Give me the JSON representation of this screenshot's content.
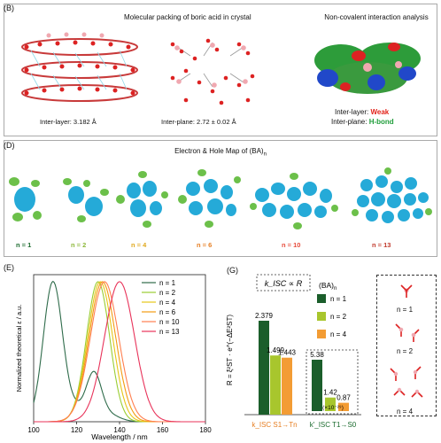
{
  "panel_b": {
    "label": "(B)",
    "title1": "Molecular packing of boric acid in crystal",
    "title2": "Non-covalent interaction analysis",
    "inter_layer": "Inter-layer: 3.182 Å",
    "inter_plane": "Inter-plane: 2.72 ± 0.02 Å",
    "nci_layer_prefix": "Inter-layer: ",
    "nci_layer_value": "Weak",
    "nci_plane_prefix": "Inter-plane: ",
    "nci_plane_value": "H-bond",
    "colors": {
      "weak": "#e2231a",
      "hbond": "#1f9d3a"
    }
  },
  "panel_d": {
    "label": "(D)",
    "title": "Electron & Hole Map of (BA)",
    "title_sub": "n",
    "n_labels": [
      {
        "text": "n = 1",
        "color": "#1b6b2e"
      },
      {
        "text": "n = 2",
        "color": "#8db83a"
      },
      {
        "text": "n = 4",
        "color": "#e0a81c"
      },
      {
        "text": "n = 6",
        "color": "#e67e22"
      },
      {
        "text": "n = 10",
        "color": "#e74c3c"
      },
      {
        "text": "n = 13",
        "color": "#c0392b"
      }
    ]
  },
  "chart_data": [
    {
      "type": "line",
      "panel": "(E)",
      "xlabel": "Wavelength / nm",
      "ylabel": "Normalized theoretical ε / a.u.",
      "xlim": [
        100,
        180
      ],
      "ylim": [
        0,
        1.05
      ],
      "xticks": [
        "100",
        "120",
        "140",
        "160",
        "180"
      ],
      "series": [
        {
          "name": "n = 1",
          "color": "#2e6b4a",
          "peak": 109,
          "peak2": 128
        },
        {
          "name": "n = 2",
          "color": "#9acd32",
          "peak": 130
        },
        {
          "name": "n = 4",
          "color": "#e6c619",
          "peak": 131
        },
        {
          "name": "n = 6",
          "color": "#f39c12",
          "peak": 132
        },
        {
          "name": "n = 10",
          "color": "#ff7f50",
          "peak": 133
        },
        {
          "name": "n = 13",
          "color": "#e8335a",
          "peak": 140
        }
      ]
    },
    {
      "type": "bar",
      "panel": "(G)",
      "annotation": "k_ISC ∝ R",
      "ylabel": "R = ξ²ST · e^(−ΔE²ST)",
      "legend_title": "(BA)",
      "legend_title_sub": "n",
      "groups": [
        {
          "label": "k_ISC  S1→Tn",
          "values": [
            2.379,
            1.499,
            1.443
          ],
          "labels": [
            "2.379",
            "1.499",
            "1.443"
          ],
          "label_color": "#e67e22"
        },
        {
          "label": "k'_ISC  T1→S0",
          "values": [
            5.38,
            1.42,
            0.87
          ],
          "labels": [
            "5.38",
            "1.42",
            "0.87"
          ],
          "label_color": "#1b6b2e",
          "scale_note": "(×10⁻²⁹)"
        }
      ],
      "series": [
        {
          "name": "n = 1",
          "color": "#1b5e2b"
        },
        {
          "name": "n = 2",
          "color": "#a8c62d"
        },
        {
          "name": "n = 4",
          "color": "#f39c34"
        }
      ]
    }
  ],
  "panel_g_side": {
    "labels": [
      "n = 1",
      "n = 2",
      "n = 4"
    ]
  }
}
